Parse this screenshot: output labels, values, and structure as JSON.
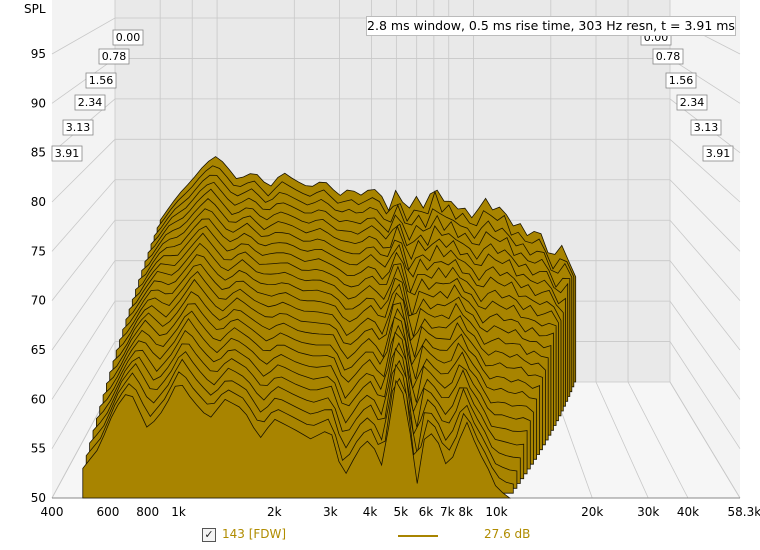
{
  "info_text": "2.8 ms window, 0.5 ms rise time,  303 Hz resn, t = 3.91 ms",
  "chart_data": {
    "type": "waterfall",
    "ylabel": "SPL",
    "y_ticks": [
      "95",
      "90",
      "85",
      "80",
      "75",
      "70",
      "65",
      "60",
      "55",
      "50"
    ],
    "ylim": [
      50,
      98
    ],
    "x_ticks": [
      "400",
      "600",
      "800",
      "1k",
      "2k",
      "3k",
      "4k",
      "5k",
      "6k",
      "7k",
      "8k",
      "10k",
      "20k",
      "30k",
      "40k",
      "58.3kHz"
    ],
    "x_tick_hz": [
      400,
      600,
      800,
      1000,
      2000,
      3000,
      4000,
      5000,
      6000,
      7000,
      8000,
      10000,
      20000,
      30000,
      40000,
      58300
    ],
    "x_scale": "log",
    "time_slices_ms": [
      "0.00",
      "0.78",
      "1.56",
      "2.34",
      "3.13",
      "3.91"
    ],
    "grid": true,
    "fill_color": "#a88400",
    "front_curve": {
      "freq_hz": [
        500,
        560,
        630,
        700,
        800,
        900,
        1000,
        1100,
        1250,
        1400,
        1600,
        1800,
        2000,
        2300,
        2600,
        3000,
        3300,
        3700,
        4000,
        4400,
        4800,
        5200,
        5600,
        6000,
        6500,
        7000,
        7500,
        8000,
        8700,
        9400,
        10000,
        11000
      ],
      "spl_db": [
        53,
        55,
        59,
        61,
        57,
        59,
        62,
        60,
        58,
        60,
        59,
        56,
        58,
        57,
        56,
        57,
        52,
        55,
        56,
        53,
        62,
        60,
        51,
        57,
        56,
        53,
        55,
        58,
        55,
        53,
        51,
        50
      ]
    },
    "back_curve": {
      "freq_hz": [
        600,
        700,
        800,
        900,
        1000,
        1100,
        1200,
        1400,
        1600,
        1800,
        2000,
        2300,
        2600,
        3000,
        3300,
        3600,
        4000,
        4300,
        4700,
        5000,
        5500,
        6000,
        6500,
        7000,
        7500,
        8000,
        8500,
        9000,
        10000,
        11000,
        12000,
        13000,
        14000,
        15000,
        16000,
        18000,
        20000,
        22000,
        25000
      ],
      "spl_db": [
        70,
        73,
        75,
        77,
        78,
        76.5,
        75,
        76,
        74,
        76,
        75,
        74,
        75,
        73,
        74,
        73,
        74,
        73.5,
        71,
        74,
        71,
        73,
        71,
        75,
        72,
        73,
        71,
        72,
        70,
        73,
        71,
        72,
        69,
        70,
        68,
        69,
        65,
        67,
        63
      ]
    }
  },
  "legend": {
    "checkbox_mark": "✓",
    "series_name": "143 [FDW]",
    "value": "27.6 dB",
    "color": "#b08c00"
  }
}
